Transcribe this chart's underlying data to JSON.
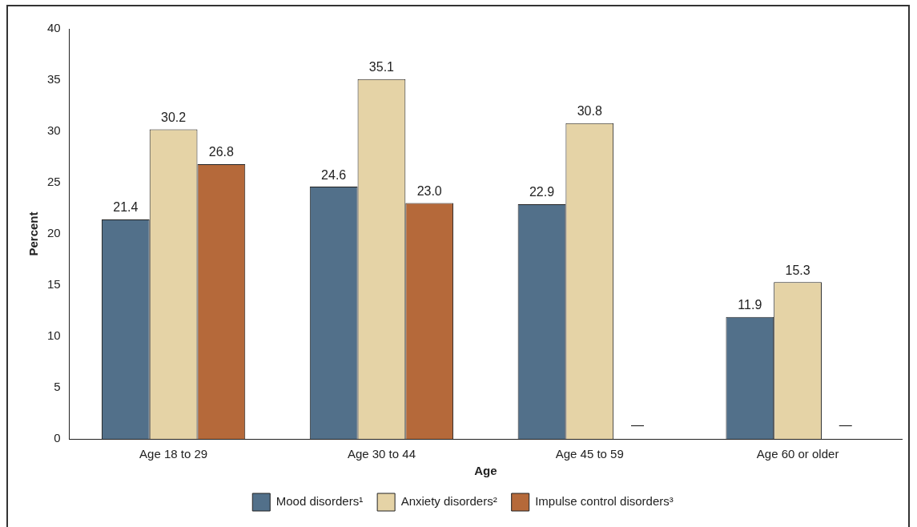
{
  "chart_data": {
    "type": "bar",
    "xlabel": "Age",
    "ylabel": "Percent",
    "categories": [
      "Age 18 to 29",
      "Age 30 to 44",
      "Age 45 to 59",
      "Age 60 or older"
    ],
    "series": [
      {
        "name": "Mood disorders¹",
        "color": "#52708a",
        "values": [
          21.4,
          24.6,
          22.9,
          11.9
        ],
        "value_labels": [
          "21.4",
          "24.6",
          "22.9",
          "11.9"
        ]
      },
      {
        "name": "Anxiety disorders²",
        "color": "#e5d3a6",
        "values": [
          30.2,
          35.1,
          30.8,
          15.3
        ],
        "value_labels": [
          "30.2",
          "35.1",
          "30.8",
          "15.3"
        ]
      },
      {
        "name": "Impulse control disorders³",
        "color": "#b5693a",
        "values": [
          26.8,
          23.0,
          null,
          null
        ],
        "value_labels": [
          "26.8",
          "23.0",
          "—",
          "—"
        ]
      }
    ],
    "ylim": [
      0,
      40
    ],
    "yticks": [
      0,
      5,
      10,
      15,
      20,
      25,
      30,
      35,
      40
    ],
    "grid": false,
    "legend": "bottom"
  }
}
